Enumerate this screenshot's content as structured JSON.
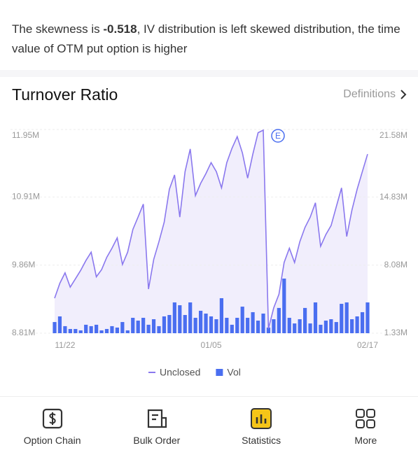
{
  "insight": {
    "before": "The skewness is ",
    "value": -0.518,
    "after": ", IV distribution is left  skewed distribution, the time value of OTM put option is higher"
  },
  "section": {
    "title": "Turnover Ratio",
    "link": "Definitions"
  },
  "chart_data": {
    "type": "combo",
    "annotation": "E",
    "categories": [
      null,
      null,
      "11/22",
      null,
      null,
      null,
      null,
      null,
      null,
      null,
      null,
      null,
      null,
      null,
      null,
      null,
      null,
      null,
      null,
      null,
      null,
      null,
      null,
      null,
      null,
      null,
      null,
      null,
      null,
      null,
      "01/05",
      null,
      null,
      null,
      null,
      null,
      null,
      null,
      null,
      null,
      null,
      null,
      null,
      null,
      null,
      null,
      null,
      null,
      null,
      null,
      null,
      null,
      null,
      null,
      null,
      null,
      null,
      null,
      null,
      null,
      "02/17"
    ],
    "series": [
      {
        "name": "Unclosed",
        "type": "line",
        "color": "#8a78ee",
        "area_color": "#f1eefc",
        "values": [
          9.35,
          9.58,
          9.74,
          9.52,
          9.65,
          9.78,
          9.93,
          10.06,
          9.68,
          9.79,
          9.98,
          10.12,
          10.28,
          9.87,
          10.06,
          10.41,
          10.6,
          10.8,
          9.49,
          9.95,
          10.22,
          10.52,
          11.03,
          11.25,
          10.6,
          11.3,
          11.65,
          10.93,
          11.12,
          11.27,
          11.44,
          11.3,
          11.05,
          11.44,
          11.66,
          11.84,
          11.59,
          11.2,
          11.57,
          11.9,
          11.94,
          8.88,
          9.2,
          9.41,
          9.9,
          10.12,
          9.9,
          10.22,
          10.44,
          10.6,
          10.82,
          10.15,
          10.33,
          10.47,
          10.76,
          11.05,
          10.3,
          10.71,
          11.03,
          11.3,
          11.57
        ]
      },
      {
        "name": "Vol",
        "type": "bar",
        "axis": "y2",
        "color": "#4a6ef0",
        "values": [
          2.44,
          3.0,
          2.03,
          1.75,
          1.75,
          1.61,
          2.17,
          2.03,
          2.17,
          1.61,
          1.75,
          2.03,
          1.89,
          2.44,
          1.61,
          2.86,
          2.58,
          2.86,
          2.17,
          2.72,
          2.03,
          3.0,
          3.14,
          4.39,
          4.11,
          3.14,
          4.39,
          2.86,
          3.56,
          3.28,
          3.0,
          2.72,
          4.81,
          2.86,
          2.17,
          2.86,
          3.97,
          2.86,
          3.42,
          2.58,
          3.28,
          1.89,
          2.72,
          3.84,
          6.76,
          2.86,
          2.3,
          2.72,
          3.84,
          2.3,
          4.39,
          2.17,
          2.58,
          2.72,
          2.44,
          4.25,
          4.39,
          2.72,
          3.0,
          3.42,
          4.39
        ]
      }
    ],
    "ylim": [
      8.81,
      11.95
    ],
    "yticks": [
      {
        "value": 8.81,
        "label": "8.81M"
      },
      {
        "value": 9.86,
        "label": "9.86M"
      },
      {
        "value": 10.91,
        "label": "10.91M"
      },
      {
        "value": 11.95,
        "label": "11.95M"
      }
    ],
    "y2lim": [
      1.33,
      21.58
    ],
    "y2ticks": [
      {
        "value": 1.33,
        "label": "1.33M"
      },
      {
        "value": 8.08,
        "label": "8.08M"
      },
      {
        "value": 14.83,
        "label": "14.83M"
      },
      {
        "value": 21.58,
        "label": "21.58M"
      }
    ],
    "grid": true,
    "legend": "bottom"
  },
  "nav": [
    {
      "label": "Option Chain",
      "active": false
    },
    {
      "label": "Bulk Order",
      "active": false
    },
    {
      "label": "Statistics",
      "active": true
    },
    {
      "label": "More",
      "active": false
    }
  ]
}
